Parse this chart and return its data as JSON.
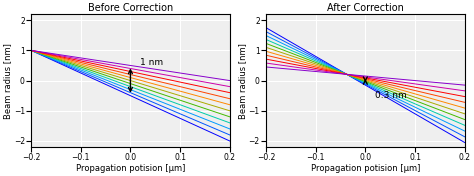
{
  "title_left": "Before Correction",
  "title_right": "After Correction",
  "xlabel": "Propagation potision [μm]",
  "ylabel": "Beam radius [nm]",
  "xlim": [
    -0.2,
    0.2
  ],
  "ylim": [
    -2.2,
    2.2
  ],
  "yticks": [
    -2,
    -1,
    0,
    1,
    2
  ],
  "xticks": [
    -0.2,
    -0.1,
    0.0,
    0.1,
    0.2
  ],
  "annotation_left": "1 nm",
  "annotation_right": "0.3 nm",
  "n_lines": 11,
  "colors": [
    "#0000FF",
    "#0055FF",
    "#0099FF",
    "#00CCAA",
    "#44BB00",
    "#AAAA00",
    "#FF8800",
    "#FF4400",
    "#FF0000",
    "#CC00AA",
    "#8800CC"
  ],
  "bg_color": "#efefef",
  "grid_color": "white"
}
